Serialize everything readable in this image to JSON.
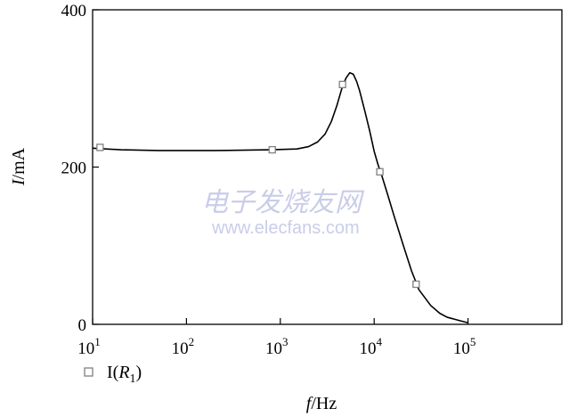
{
  "chart_data": {
    "type": "line",
    "x_scale": "log",
    "xlim": [
      10,
      1000000
    ],
    "ylim": [
      0,
      400
    ],
    "x_ticks": [
      {
        "value": 10,
        "base": "10",
        "exp": "1"
      },
      {
        "value": 100,
        "base": "10",
        "exp": "2"
      },
      {
        "value": 1000,
        "base": "10",
        "exp": "3"
      },
      {
        "value": 10000,
        "base": "10",
        "exp": "4"
      },
      {
        "value": 100000,
        "base": "10",
        "exp": "5"
      }
    ],
    "y_ticks": [
      {
        "value": 0,
        "label": "0"
      },
      {
        "value": 200,
        "label": "200"
      },
      {
        "value": 400,
        "label": "400"
      }
    ],
    "xlabel": {
      "var": "f",
      "unit": "/Hz"
    },
    "ylabel": {
      "var": "I",
      "unit": "/mA"
    },
    "series": [
      {
        "legend": {
          "prefix": "I(",
          "var": "R",
          "sub": "1",
          "suffix": ")"
        },
        "color": "#000000",
        "marker_color": "#808080",
        "marker": "square",
        "line": [
          [
            10,
            224
          ],
          [
            20,
            222
          ],
          [
            50,
            221
          ],
          [
            200,
            221
          ],
          [
            800,
            222
          ],
          [
            1500,
            223
          ],
          [
            2000,
            226
          ],
          [
            2500,
            232
          ],
          [
            3000,
            242
          ],
          [
            3500,
            258
          ],
          [
            4000,
            278
          ],
          [
            4500,
            299
          ],
          [
            5000,
            313
          ],
          [
            5500,
            320
          ],
          [
            6000,
            318
          ],
          [
            6500,
            309
          ],
          [
            7000,
            297
          ],
          [
            8000,
            270
          ],
          [
            9000,
            245
          ],
          [
            10000,
            220
          ],
          [
            11000,
            203
          ],
          [
            12000,
            190
          ],
          [
            14000,
            164
          ],
          [
            16000,
            141
          ],
          [
            20000,
            104
          ],
          [
            25000,
            68
          ],
          [
            30000,
            44
          ],
          [
            40000,
            24
          ],
          [
            50000,
            14
          ],
          [
            60000,
            9
          ],
          [
            80000,
            5
          ],
          [
            100000,
            2
          ]
        ],
        "markers": [
          [
            12,
            225
          ],
          [
            820,
            222
          ],
          [
            4600,
            305
          ],
          [
            11500,
            194
          ],
          [
            28000,
            51
          ]
        ]
      }
    ],
    "grid": false
  },
  "watermark": {
    "chinese": "电子发烧友网",
    "url": "www.elecfans.com"
  }
}
